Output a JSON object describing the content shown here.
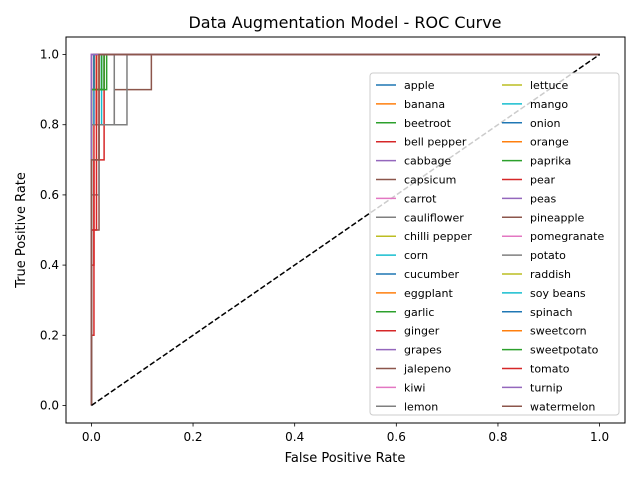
{
  "chart_data": {
    "type": "line",
    "title": "Data Augmentation Model - ROC Curve",
    "xlabel": "False Positive Rate",
    "ylabel": "True Positive Rate",
    "xlim": [
      -0.05,
      1.05
    ],
    "ylim": [
      -0.05,
      1.05
    ],
    "x_ticks": [
      "0.0",
      "0.2",
      "0.4",
      "0.6",
      "0.8",
      "1.0"
    ],
    "y_ticks": [
      "0.0",
      "0.2",
      "0.4",
      "0.6",
      "0.8",
      "1.0"
    ],
    "grid": false,
    "legend_location": "center-right",
    "legend_columns": 2,
    "diagonal": {
      "x": [
        0,
        1
      ],
      "y": [
        0,
        1
      ],
      "color": "#000000",
      "style": "dashed"
    },
    "series": [
      {
        "name": "apple",
        "color": "#1f77b4",
        "x": [
          0,
          0,
          0.02,
          0.02,
          1
        ],
        "y": [
          0,
          0.9,
          0.9,
          1,
          1
        ]
      },
      {
        "name": "banana",
        "color": "#ff7f0e",
        "x": [
          0,
          0,
          0.01,
          0.01,
          1
        ],
        "y": [
          0,
          0.8,
          0.8,
          1,
          1
        ]
      },
      {
        "name": "beetroot",
        "color": "#2ca02c",
        "x": [
          0,
          0,
          0.025,
          0.025,
          1
        ],
        "y": [
          0,
          0.9,
          0.9,
          1,
          1
        ]
      },
      {
        "name": "bell pepper",
        "color": "#d62728",
        "x": [
          0,
          0,
          0.005,
          0.005,
          0.015,
          0.015,
          1
        ],
        "y": [
          0,
          0.4,
          0.4,
          0.8,
          0.8,
          1,
          1
        ]
      },
      {
        "name": "cabbage",
        "color": "#9467bd",
        "x": [
          0,
          0,
          1
        ],
        "y": [
          0,
          1,
          1
        ]
      },
      {
        "name": "capsicum",
        "color": "#8c564b",
        "x": [
          0,
          0,
          0.015,
          0.015,
          0.045,
          0.045,
          0.118,
          0.118,
          1
        ],
        "y": [
          0,
          0.5,
          0.5,
          0.8,
          0.8,
          0.9,
          0.9,
          1,
          1
        ]
      },
      {
        "name": "carrot",
        "color": "#e377c2",
        "x": [
          0,
          0,
          0.005,
          0.005,
          1
        ],
        "y": [
          0,
          0.9,
          0.9,
          1,
          1
        ]
      },
      {
        "name": "cauliflower",
        "color": "#7f7f7f",
        "x": [
          0,
          0,
          0.015,
          0.015,
          0.07,
          0.07,
          1
        ],
        "y": [
          0,
          0.6,
          0.6,
          0.8,
          0.8,
          1,
          1
        ]
      },
      {
        "name": "chilli pepper",
        "color": "#bcbd22",
        "x": [
          0,
          0,
          0.01,
          0.01,
          1
        ],
        "y": [
          0,
          0.9,
          0.9,
          1,
          1
        ]
      },
      {
        "name": "corn",
        "color": "#17becf",
        "x": [
          0,
          0,
          0.02,
          0.02,
          1
        ],
        "y": [
          0,
          0.8,
          0.8,
          1,
          1
        ]
      },
      {
        "name": "cucumber",
        "color": "#1f77b4",
        "x": [
          0,
          0,
          0.005,
          0.005,
          1
        ],
        "y": [
          0,
          0.8,
          0.8,
          1,
          1
        ]
      },
      {
        "name": "eggplant",
        "color": "#ff7f0e",
        "x": [
          0,
          0,
          0.015,
          0.015,
          1
        ],
        "y": [
          0,
          0.9,
          0.9,
          1,
          1
        ]
      },
      {
        "name": "garlic",
        "color": "#2ca02c",
        "x": [
          0,
          0,
          0.03,
          0.03,
          1
        ],
        "y": [
          0,
          0.9,
          0.9,
          1,
          1
        ]
      },
      {
        "name": "ginger",
        "color": "#d62728",
        "x": [
          0,
          0,
          0.005,
          0.005,
          0.025,
          0.025,
          1
        ],
        "y": [
          0,
          0.2,
          0.2,
          0.7,
          0.7,
          1,
          1
        ]
      },
      {
        "name": "grapes",
        "color": "#9467bd",
        "x": [
          0,
          0,
          0.005,
          0.005,
          1
        ],
        "y": [
          0,
          0.9,
          0.9,
          1,
          1
        ]
      },
      {
        "name": "jalepeno",
        "color": "#8c564b",
        "x": [
          0,
          0,
          0.01,
          0.01,
          1
        ],
        "y": [
          0,
          0.8,
          0.8,
          1,
          1
        ]
      },
      {
        "name": "kiwi",
        "color": "#e377c2",
        "x": [
          0,
          0,
          1
        ],
        "y": [
          0,
          1,
          1
        ]
      },
      {
        "name": "lemon",
        "color": "#7f7f7f",
        "x": [
          0,
          0,
          0.005,
          0.005,
          1
        ],
        "y": [
          0,
          0.9,
          0.9,
          1,
          1
        ]
      },
      {
        "name": "lettuce",
        "color": "#bcbd22",
        "x": [
          0,
          0,
          0.01,
          0.01,
          1
        ],
        "y": [
          0,
          0.9,
          0.9,
          1,
          1
        ]
      },
      {
        "name": "mango",
        "color": "#17becf",
        "x": [
          0,
          0,
          0.02,
          0.02,
          1
        ],
        "y": [
          0,
          0.9,
          0.9,
          1,
          1
        ]
      },
      {
        "name": "onion",
        "color": "#1f77b4",
        "x": [
          0,
          0,
          0.005,
          0.005,
          1
        ],
        "y": [
          0,
          0.9,
          0.9,
          1,
          1
        ]
      },
      {
        "name": "orange",
        "color": "#ff7f0e",
        "x": [
          0,
          0,
          0.01,
          0.01,
          1
        ],
        "y": [
          0,
          0.9,
          0.9,
          1,
          1
        ]
      },
      {
        "name": "paprika",
        "color": "#2ca02c",
        "x": [
          0,
          0,
          0.02,
          0.02,
          1
        ],
        "y": [
          0,
          0.9,
          0.9,
          1,
          1
        ]
      },
      {
        "name": "pear",
        "color": "#d62728",
        "x": [
          0,
          0,
          0.01,
          0.01,
          1
        ],
        "y": [
          0,
          0.8,
          0.8,
          1,
          1
        ]
      },
      {
        "name": "peas",
        "color": "#9467bd",
        "x": [
          0,
          0,
          1
        ],
        "y": [
          0,
          1,
          1
        ]
      },
      {
        "name": "pineapple",
        "color": "#8c564b",
        "x": [
          0,
          0,
          0.005,
          0.005,
          1
        ],
        "y": [
          0,
          0.9,
          0.9,
          1,
          1
        ]
      },
      {
        "name": "pomegranate",
        "color": "#e377c2",
        "x": [
          0,
          0,
          1
        ],
        "y": [
          0,
          1,
          1
        ]
      },
      {
        "name": "potato",
        "color": "#7f7f7f",
        "x": [
          0,
          0,
          0.045,
          0.045,
          1
        ],
        "y": [
          0,
          0.8,
          0.8,
          1,
          1
        ]
      },
      {
        "name": "raddish",
        "color": "#bcbd22",
        "x": [
          0,
          0,
          0.005,
          0.005,
          1
        ],
        "y": [
          0,
          0.9,
          0.9,
          1,
          1
        ]
      },
      {
        "name": "soy beans",
        "color": "#17becf",
        "x": [
          0,
          0,
          0.01,
          0.01,
          1
        ],
        "y": [
          0,
          0.9,
          0.9,
          1,
          1
        ]
      },
      {
        "name": "spinach",
        "color": "#1f77b4",
        "x": [
          0,
          0,
          0.005,
          0.005,
          1
        ],
        "y": [
          0,
          0.9,
          0.9,
          1,
          1
        ]
      },
      {
        "name": "sweetcorn",
        "color": "#ff7f0e",
        "x": [
          0,
          0,
          0.01,
          0.01,
          1
        ],
        "y": [
          0,
          0.9,
          0.9,
          1,
          1
        ]
      },
      {
        "name": "sweetpotato",
        "color": "#2ca02c",
        "x": [
          0,
          0,
          0.025,
          0.025,
          1
        ],
        "y": [
          0,
          0.9,
          0.9,
          1,
          1
        ]
      },
      {
        "name": "tomato",
        "color": "#d62728",
        "x": [
          0,
          0,
          0.01,
          0.01,
          1
        ],
        "y": [
          0,
          0.5,
          0.5,
          1,
          1
        ]
      },
      {
        "name": "turnip",
        "color": "#9467bd",
        "x": [
          0,
          0,
          1
        ],
        "y": [
          0,
          1,
          1
        ]
      },
      {
        "name": "watermelon",
        "color": "#8c564b",
        "x": [
          0,
          0,
          0.015,
          0.015,
          1
        ],
        "y": [
          0,
          0.7,
          0.7,
          1,
          1
        ]
      }
    ]
  }
}
